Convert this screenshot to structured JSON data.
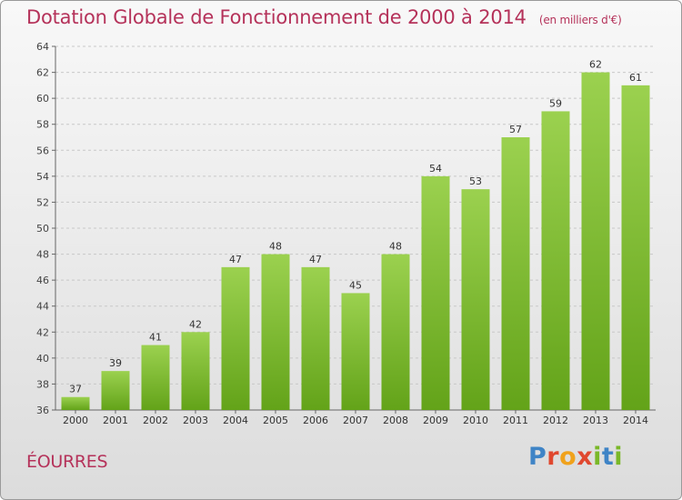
{
  "title": "Dotation Globale de Fonctionnement de 2000 à 2014",
  "unit_note": "(en milliers d'€)",
  "commune": "ÉOURRES",
  "logo": {
    "text": "Proxiti",
    "letters": [
      {
        "ch": "P",
        "color": "#3f84c6"
      },
      {
        "ch": "r",
        "color": "#e0482f"
      },
      {
        "ch": "o",
        "color": "#f0a21c"
      },
      {
        "ch": "x",
        "color": "#e0482f"
      },
      {
        "ch": "i",
        "color": "#7ab828"
      },
      {
        "ch": "t",
        "color": "#3f84c6"
      },
      {
        "ch": "i",
        "color": "#7ab828"
      }
    ]
  },
  "colors": {
    "title": "#b5325a",
    "bar_top": "#9bd14f",
    "bar_bottom": "#63a319",
    "grid": "#c8c8c8"
  },
  "chart_data": {
    "type": "bar",
    "categories": [
      "2000",
      "2001",
      "2002",
      "2003",
      "2004",
      "2005",
      "2006",
      "2007",
      "2008",
      "2009",
      "2010",
      "2011",
      "2012",
      "2013",
      "2014"
    ],
    "values": [
      37,
      39,
      41,
      42,
      47,
      48,
      47,
      45,
      48,
      54,
      53,
      57,
      59,
      62,
      61
    ],
    "ylim": [
      36,
      64
    ],
    "yticks": [
      36,
      38,
      40,
      42,
      44,
      46,
      48,
      50,
      52,
      54,
      56,
      58,
      60,
      62,
      64
    ],
    "grid": true,
    "data_labels": true
  }
}
